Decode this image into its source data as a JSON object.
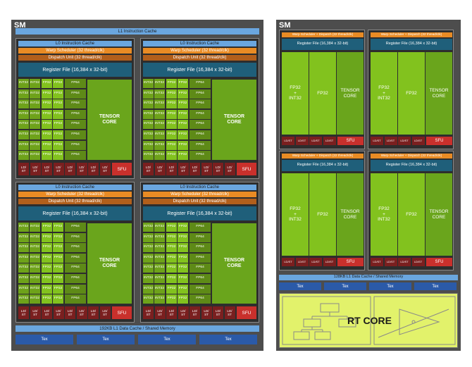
{
  "left_sm": {
    "title": "SM",
    "l1_instruction_cache": "L1 Instruction Cache",
    "subcore": {
      "l0_cache": "L0 Instruction Cache",
      "warp_scheduler": "Warp Scheduler (32 thread/clk)",
      "dispatch_unit": "Dispatch Unit (32 thread/clk)",
      "register_file": "Register File (16,384 x 32-bit)",
      "int32": "INT32",
      "fp32": "FP32",
      "fp64": "FP64",
      "tensor_core": "TENSOR CORE",
      "ldst": "LD/ ST",
      "sfu": "SFU"
    },
    "l1_data_cache": "192KB L1 Data Cache / Shared Memory",
    "tex": [
      "Tex",
      "Tex",
      "Tex",
      "Tex"
    ]
  },
  "right_sm": {
    "title": "SM",
    "subcore": {
      "warp_dispatch": "Warp Scheduler + Dispatch (32 thread/clk)",
      "register_file": "Register File (16,384 x 32-bit)",
      "fp32_int32": "FP32 + INT32",
      "fp32": "FP32",
      "tensor_core": "TENSOR CORE",
      "ldst": "LD/ST",
      "sfu": "SFU"
    },
    "l1_data_cache": "128KB L1 Data Cache / Shared Memory",
    "tex": [
      "Tex",
      "Tex",
      "Tex",
      "Tex"
    ],
    "rt_core": "RT CORE"
  },
  "colors": {
    "sm_background": "#4d4d4d",
    "cache_blue": "#6aa6df",
    "warp_orange": "#e98b24",
    "dispatch_brown": "#b25f1b",
    "register_teal": "#1f5f7a",
    "core_green": "#82c21e",
    "ldst_maroon": "#7a1f1f",
    "sfu_red": "#c9302c",
    "tex_blue": "#2b5aa8",
    "rt_core_yellow": "#e2f26b"
  }
}
